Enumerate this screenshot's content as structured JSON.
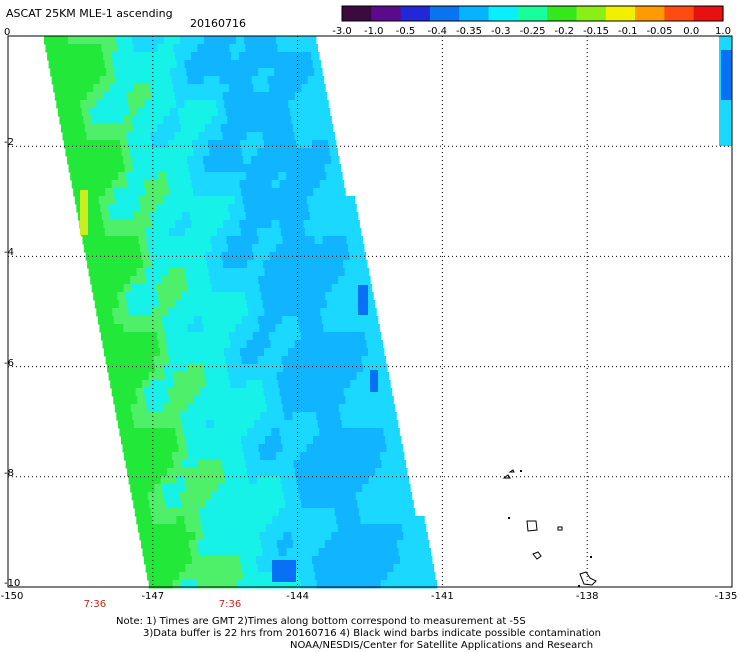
{
  "header": {
    "title": "ASCAT 25KM MLE-1 ascending",
    "date": "20160716"
  },
  "colorbar": {
    "labels": [
      "-3.0",
      "-1.0",
      "-0.5",
      "-0.4",
      "-0.35",
      "-0.3",
      "-0.25",
      "-0.2",
      "-0.15",
      "-0.1",
      "-0.05",
      "0.0",
      "1.0"
    ],
    "colors": [
      "#3b0a3f",
      "#5a0b8c",
      "#2228d8",
      "#0a74f0",
      "#05b4ff",
      "#08f0ff",
      "#16ff9c",
      "#34e81c",
      "#8aef14",
      "#f0f000",
      "#ff9b00",
      "#ff4a10",
      "#e81010"
    ]
  },
  "map": {
    "lat_labels": [
      "0",
      "-2",
      "-4",
      "-6",
      "-8",
      "-10"
    ],
    "lon_labels": [
      "-150",
      "-147",
      "-144",
      "-141",
      "-138",
      "-135"
    ],
    "lat_range": [
      -10,
      0
    ],
    "lon_range": [
      -150,
      -135
    ],
    "time_labels": [
      {
        "lon": -148.2,
        "text": "7:36"
      },
      {
        "lon": -145.4,
        "text": "7:36"
      }
    ]
  },
  "notes": {
    "line1": "Note: 1) Times are GMT 2)Times along bottom correspond to measurement at -5S",
    "line2": "3)Data buffer is 22 hrs from 20160716 4) Black wind barbs indicate possible contamination",
    "line3": "NOAA/NESDIS/Center for Satellite Applications and Research"
  },
  "palette": {
    "green": "#22e83a",
    "lightgreen": "#4ef06a",
    "cyan": "#16f2e8",
    "lightblue": "#1ad8ff",
    "blue": "#10b4ff",
    "darkblue": "#0870f4"
  }
}
